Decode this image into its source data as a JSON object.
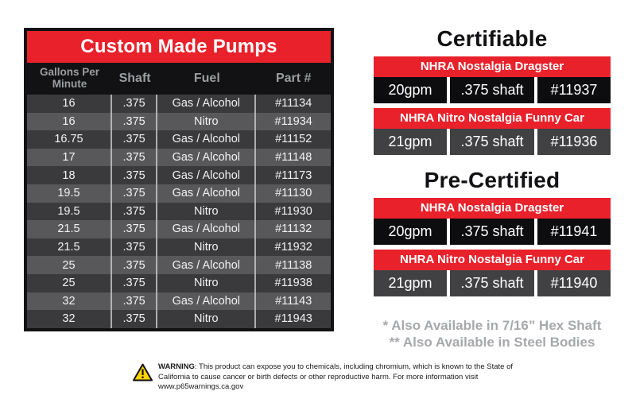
{
  "colors": {
    "accent_red": "#e8212b",
    "table_border_black": "#121214",
    "row_dark": "#3a3a3c",
    "row_light": "#58585a",
    "header_text_gray": "#9b9da0",
    "cert_row_black": "#0d0d0f",
    "cert_row_gray": "#414144",
    "footnote_gray": "#a6a8ab",
    "warning_yellow": "#ffd200"
  },
  "pump_table": {
    "title": "Custom Made Pumps",
    "columns": [
      "Gallons Per Minute",
      "Shaft",
      "Fuel",
      "Part #"
    ],
    "rows": [
      [
        "16",
        ".375",
        "Gas / Alcohol",
        "#11134"
      ],
      [
        "16",
        ".375",
        "Nitro",
        "#11934"
      ],
      [
        "16.75",
        ".375",
        "Gas / Alcohol",
        "#11152"
      ],
      [
        "17",
        ".375",
        "Gas / Alcohol",
        "#11148"
      ],
      [
        "18",
        ".375",
        "Gas / Alcohol",
        "#11173"
      ],
      [
        "19.5",
        ".375",
        "Gas / Alcohol",
        "#11130"
      ],
      [
        "19.5",
        ".375",
        "Nitro",
        "#11930"
      ],
      [
        "21.5",
        ".375",
        "Gas / Alcohol",
        "#11132"
      ],
      [
        "21.5",
        ".375",
        "Nitro",
        "#11932"
      ],
      [
        "25",
        ".375",
        "Gas / Alcohol",
        "#11138"
      ],
      [
        "25",
        ".375",
        "Nitro",
        "#11938"
      ],
      [
        "32",
        ".375",
        "Gas / Alcohol",
        "#11143"
      ],
      [
        "32",
        ".375",
        "Nitro",
        "#11943"
      ]
    ]
  },
  "right": {
    "certifiable": {
      "title": "Certifiable",
      "entries": [
        {
          "class_name": "NHRA Nostalgia Dragster",
          "gpm": "20gpm",
          "shaft": ".375 shaft",
          "part": "#11937"
        },
        {
          "class_name": "NHRA Nitro Nostalgia Funny Car",
          "gpm": "21gpm",
          "shaft": ".375 shaft",
          "part": "#11936"
        }
      ]
    },
    "pre_certified": {
      "title": "Pre-Certified",
      "entries": [
        {
          "class_name": "NHRA Nostalgia Dragster",
          "gpm": "20gpm",
          "shaft": ".375 shaft",
          "part": "#11941"
        },
        {
          "class_name": "NHRA Nitro Nostalgia Funny Car",
          "gpm": "21gpm",
          "shaft": ".375 shaft",
          "part": "#11940"
        }
      ]
    },
    "footnotes": [
      "* Also Available in 7/16” Hex Shaft",
      "** Also Available in Steel Bodies"
    ]
  },
  "warning": {
    "label": "WARNING",
    "text": ": This product can expose you to chemicals, including chromium, which is known to the State of California to cause cancer or birth defects or other reproductive harm. For more information visit www.p65warnings.ca.gov"
  }
}
